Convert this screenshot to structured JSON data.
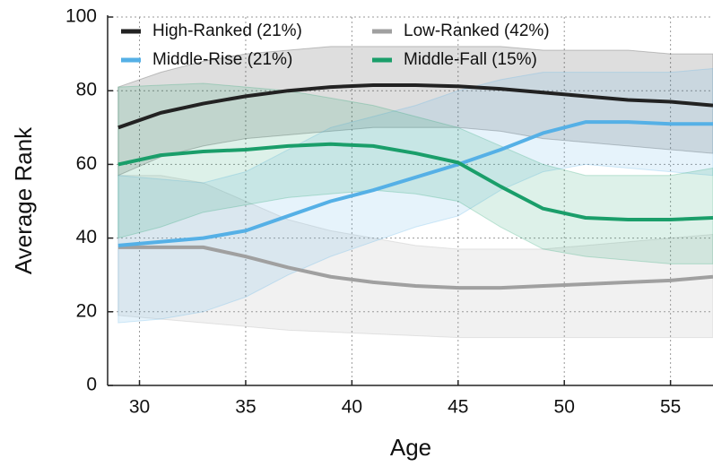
{
  "chart_data": {
    "type": "line-band",
    "xlabel": "Age",
    "ylabel": "Average Rank",
    "x": [
      29,
      31,
      33,
      35,
      37,
      39,
      41,
      43,
      45,
      47,
      49,
      51,
      53,
      55,
      57
    ],
    "xlim": [
      28.5,
      57
    ],
    "ylim": [
      0,
      100
    ],
    "xticks": [
      30,
      35,
      40,
      45,
      50,
      55
    ],
    "yticks": [
      0,
      20,
      40,
      60,
      80,
      100
    ],
    "grid": true,
    "legend": "upper left",
    "series": [
      {
        "name": "High-Ranked (21%)",
        "color": "#222222",
        "values": [
          70,
          74,
          76.5,
          78.5,
          80,
          81,
          81.5,
          81.5,
          81.2,
          80.5,
          79.5,
          78.5,
          77.5,
          77,
          76
        ],
        "upper": [
          81,
          85,
          88,
          90,
          91,
          92,
          92,
          92,
          92,
          92,
          91,
          91,
          91,
          90,
          90
        ],
        "lower": [
          57,
          62,
          65,
          67,
          68,
          69,
          70,
          70,
          70,
          69,
          67,
          66,
          65,
          64,
          63
        ]
      },
      {
        "name": "Low-Ranked (42%)",
        "color": "#a0a0a0",
        "values": [
          37.5,
          37.5,
          37.5,
          35,
          32,
          29.5,
          28,
          27,
          26.5,
          26.5,
          27,
          27.5,
          28,
          28.5,
          29.5
        ],
        "upper": [
          57,
          57,
          55,
          50,
          45,
          42,
          40,
          38,
          37,
          37,
          37,
          38,
          39,
          40,
          41
        ],
        "lower": [
          19,
          18,
          17,
          16,
          15,
          14.5,
          14,
          13.5,
          13,
          13,
          13,
          13,
          13,
          13,
          13
        ]
      },
      {
        "name": "Middle-Rise (21%)",
        "color": "#55b0e6",
        "values": [
          38,
          39,
          40,
          42,
          46,
          50,
          53,
          56.5,
          60,
          64,
          68.5,
          71.5,
          71.5,
          71,
          71
        ],
        "upper": [
          57,
          56,
          55,
          58,
          64,
          70,
          73,
          76,
          80,
          83,
          85,
          85,
          85,
          85,
          86
        ],
        "lower": [
          17,
          18,
          20,
          24,
          30,
          35,
          39,
          43,
          46,
          53,
          58,
          60,
          59,
          58,
          57
        ]
      },
      {
        "name": "Middle-Fall (15%)",
        "color": "#1a9e6a",
        "values": [
          60,
          62.5,
          63.5,
          64,
          65,
          65.5,
          65,
          63,
          60.5,
          54,
          48,
          45.5,
          45,
          45,
          45.5
        ],
        "upper": [
          81,
          81.5,
          82,
          81,
          80,
          78,
          76,
          73,
          70,
          65,
          60,
          57,
          57,
          57,
          59
        ],
        "lower": [
          40,
          43,
          47,
          49,
          51,
          52,
          53,
          52,
          50,
          43,
          37,
          35,
          34,
          33,
          33
        ]
      }
    ]
  }
}
